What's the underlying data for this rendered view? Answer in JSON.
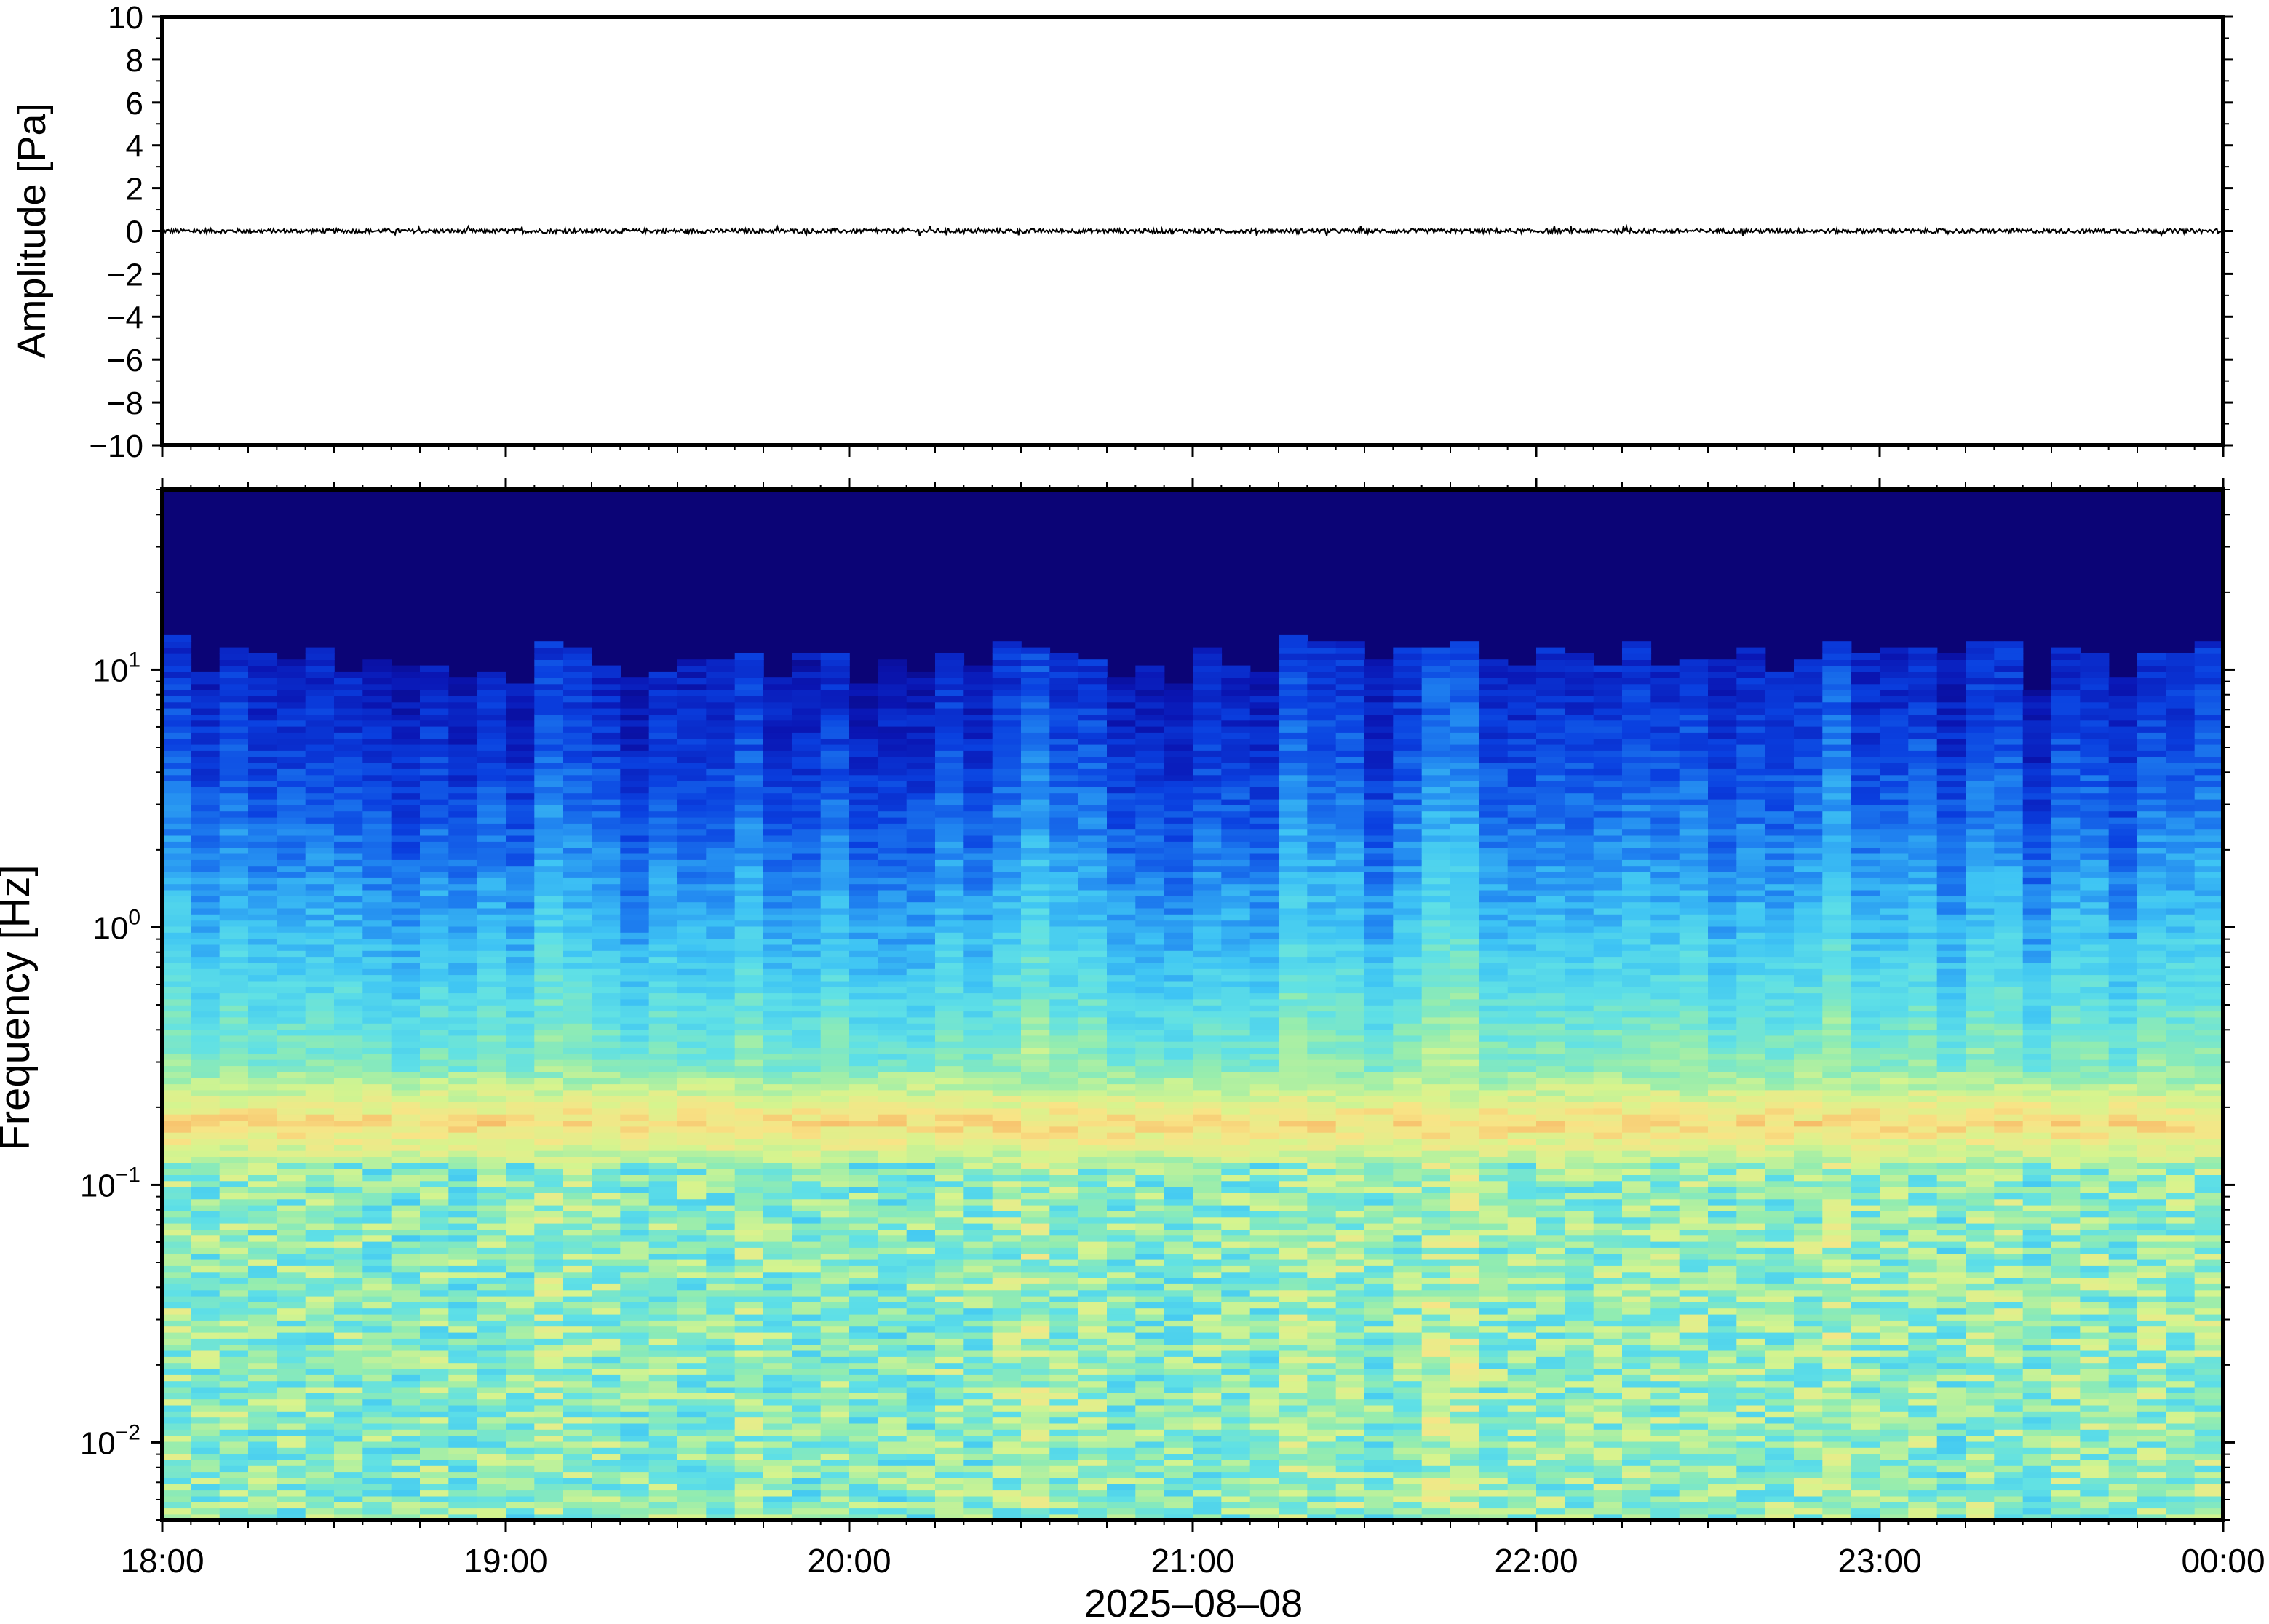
{
  "chart_data": [
    {
      "type": "line",
      "panel": "waveform",
      "ylabel": "Amplitude [Pa]",
      "ylim": [
        -10,
        10
      ],
      "yticks": [
        10,
        8,
        6,
        4,
        2,
        0,
        -2,
        -4,
        -6,
        -8,
        -10
      ],
      "ytick_labels": [
        "10",
        "8",
        "6",
        "4",
        "2",
        "0",
        "−2",
        "−4",
        "−6",
        "−8",
        "−10"
      ],
      "xlim": [
        "18:00",
        "00:00"
      ],
      "series": [
        {
          "color": "#000000",
          "description_values": {
            "center": 0,
            "noise_amplitude": 0.1
          }
        }
      ],
      "grid": false
    },
    {
      "type": "heatmap",
      "panel": "spectrogram",
      "ylabel": "Frequency [Hz]",
      "yscale": "log",
      "ylim": [
        0.005,
        50
      ],
      "yticks": [
        10,
        1,
        0.1,
        0.01
      ],
      "ytick_labels": [
        {
          "base": "10",
          "exp": "1"
        },
        {
          "base": "10",
          "exp": "0"
        },
        {
          "base": "10",
          "exp": "−1"
        },
        {
          "base": "10",
          "exp": "−2"
        }
      ],
      "xlabel": "2025–08–08",
      "xticks": [
        "18:00",
        "19:00",
        "20:00",
        "21:00",
        "22:00",
        "23:00",
        "00:00"
      ],
      "colormap": [
        "#0b0476",
        "#0a16b4",
        "#0a40e0",
        "#1f82f0",
        "#3ec4f4",
        "#5fe0e6",
        "#92ecb0",
        "#d6f48e",
        "#f8e486",
        "#f6b060",
        "#f08a48"
      ],
      "features": {
        "microseism_band_hz": [
          0.15,
          0.2
        ],
        "bright_columns_time": [
          "19:10",
          "20:30",
          "21:20",
          "21:45",
          "22:25",
          "22:50",
          "23:55"
        ]
      },
      "grid": false
    }
  ]
}
